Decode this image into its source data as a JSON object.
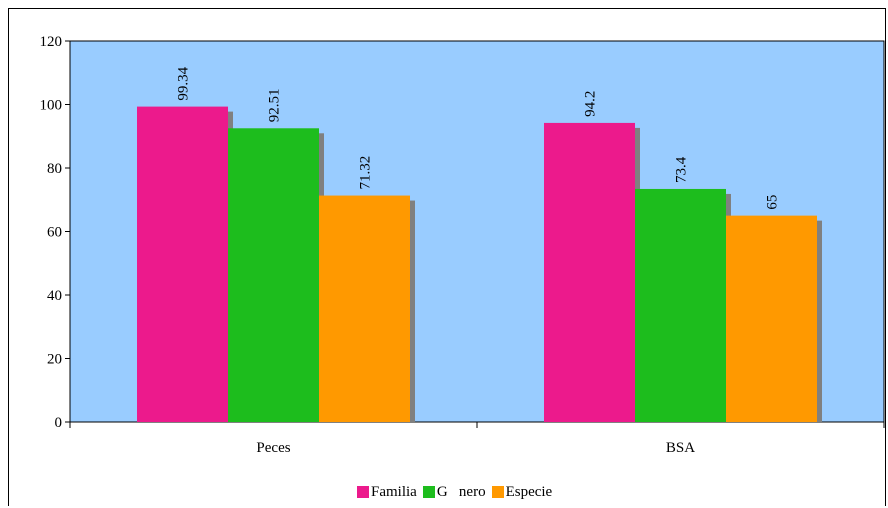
{
  "chart_data": {
    "type": "bar",
    "categories": [
      "Peces",
      "BSA"
    ],
    "series": [
      {
        "name": "Familia",
        "values": [
          99.34,
          94.2
        ],
        "labels": [
          "99.34",
          "94.2"
        ],
        "color": "#ec1a8c"
      },
      {
        "name": "G   nero",
        "values": [
          92.51,
          73.4
        ],
        "labels": [
          "92.51",
          "73.4"
        ],
        "color": "#1dbd1d"
      },
      {
        "name": "Especie",
        "values": [
          71.32,
          65
        ],
        "labels": [
          "71.32",
          "65"
        ],
        "color": "#ff9900"
      }
    ],
    "ylim": [
      0,
      120
    ],
    "yticks": [
      "0",
      "20",
      "40",
      "60",
      "80",
      "100",
      "120"
    ],
    "plot_background": "#99ccff",
    "legend_position": "bottom",
    "grid": false
  }
}
